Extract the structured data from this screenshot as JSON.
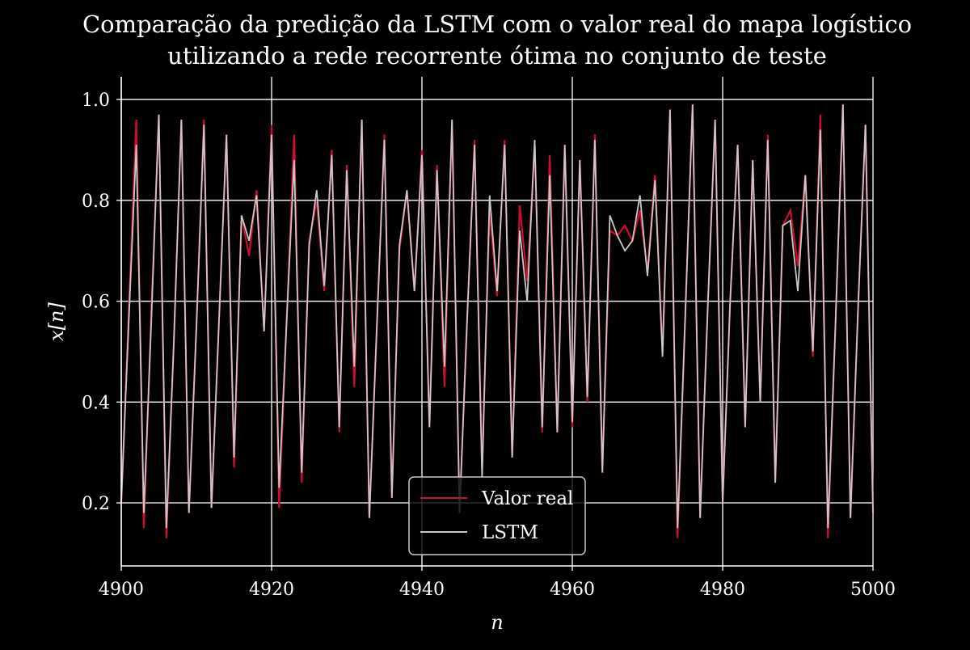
{
  "chart_data": {
    "type": "line",
    "title": "Comparação da predição da LSTM com o valor real do mapa logístico",
    "subtitle": "utilizando a rede recorrente ótima no conjunto de teste",
    "xlabel": "n",
    "ylabel": "x[n]",
    "xlim": [
      4900,
      5000
    ],
    "ylim": [
      0.075,
      1.045
    ],
    "x_ticks": [
      4900,
      4920,
      4940,
      4960,
      4980,
      5000
    ],
    "x_tick_labels": [
      "4900",
      "4920",
      "4940",
      "4960",
      "4980",
      "5000"
    ],
    "y_ticks": [
      0.2,
      0.4,
      0.6,
      0.8,
      1.0
    ],
    "y_tick_labels": [
      "0.2",
      "0.4",
      "0.6",
      "0.8",
      "1.0"
    ],
    "grid": true,
    "legend_position": "bottom-center",
    "x": [
      4900,
      4901,
      4902,
      4903,
      4904,
      4905,
      4906,
      4907,
      4908,
      4909,
      4910,
      4911,
      4912,
      4913,
      4914,
      4915,
      4916,
      4917,
      4918,
      4919,
      4920,
      4921,
      4922,
      4923,
      4924,
      4925,
      4926,
      4927,
      4928,
      4929,
      4930,
      4931,
      4932,
      4933,
      4934,
      4935,
      4936,
      4937,
      4938,
      4939,
      4940,
      4941,
      4942,
      4943,
      4944,
      4945,
      4946,
      4947,
      4948,
      4949,
      4950,
      4951,
      4952,
      4953,
      4954,
      4955,
      4956,
      4957,
      4958,
      4959,
      4960,
      4961,
      4962,
      4963,
      4964,
      4965,
      4966,
      4967,
      4968,
      4969,
      4970,
      4971,
      4972,
      4973,
      4974,
      4975,
      4976,
      4977,
      4978,
      4979,
      4980,
      4981,
      4982,
      4983,
      4984,
      4985,
      4986,
      4987,
      4988,
      4989,
      4990,
      4991,
      4992,
      4993,
      4994,
      4995,
      4996,
      4997,
      4998,
      4999,
      5000
    ],
    "series": [
      {
        "name": "Valor real",
        "color": "#c8102e",
        "values": [
          0.2,
          0.58,
          0.96,
          0.15,
          0.58,
          0.97,
          0.13,
          0.52,
          0.96,
          0.18,
          0.55,
          0.96,
          0.19,
          0.56,
          0.93,
          0.27,
          0.77,
          0.69,
          0.82,
          0.54,
          0.95,
          0.19,
          0.56,
          0.93,
          0.24,
          0.72,
          0.8,
          0.62,
          0.9,
          0.34,
          0.87,
          0.43,
          0.96,
          0.17,
          0.55,
          0.93,
          0.21,
          0.7,
          0.82,
          0.62,
          0.9,
          0.35,
          0.87,
          0.43,
          0.96,
          0.18,
          0.56,
          0.92,
          0.27,
          0.78,
          0.61,
          0.92,
          0.29,
          0.79,
          0.64,
          0.91,
          0.34,
          0.89,
          0.34,
          0.91,
          0.35,
          0.88,
          0.4,
          0.93,
          0.26,
          0.74,
          0.73,
          0.75,
          0.72,
          0.78,
          0.66,
          0.85,
          0.5,
          0.98,
          0.13,
          0.56,
          0.99,
          0.17,
          0.58,
          0.96,
          0.2,
          0.6,
          0.91,
          0.35,
          0.88,
          0.4,
          0.93,
          0.24,
          0.75,
          0.78,
          0.67,
          0.85,
          0.49,
          0.97,
          0.13,
          0.55,
          0.99,
          0.17,
          0.58,
          0.95,
          0.18
        ]
      },
      {
        "name": "LSTM",
        "color": "#c8c8c8",
        "values": [
          0.2,
          0.56,
          0.91,
          0.18,
          0.56,
          0.97,
          0.15,
          0.52,
          0.96,
          0.18,
          0.55,
          0.95,
          0.19,
          0.56,
          0.93,
          0.29,
          0.77,
          0.72,
          0.81,
          0.54,
          0.93,
          0.23,
          0.56,
          0.88,
          0.26,
          0.71,
          0.82,
          0.63,
          0.89,
          0.35,
          0.86,
          0.47,
          0.96,
          0.17,
          0.55,
          0.92,
          0.21,
          0.71,
          0.82,
          0.62,
          0.89,
          0.35,
          0.86,
          0.47,
          0.96,
          0.18,
          0.56,
          0.91,
          0.25,
          0.81,
          0.62,
          0.91,
          0.29,
          0.74,
          0.6,
          0.92,
          0.35,
          0.85,
          0.34,
          0.91,
          0.36,
          0.88,
          0.41,
          0.92,
          0.26,
          0.77,
          0.73,
          0.7,
          0.72,
          0.81,
          0.65,
          0.84,
          0.49,
          0.98,
          0.15,
          0.56,
          0.99,
          0.17,
          0.58,
          0.96,
          0.2,
          0.6,
          0.91,
          0.35,
          0.88,
          0.4,
          0.92,
          0.24,
          0.75,
          0.76,
          0.62,
          0.85,
          0.5,
          0.94,
          0.15,
          0.55,
          0.99,
          0.17,
          0.58,
          0.95,
          0.18
        ]
      }
    ]
  }
}
